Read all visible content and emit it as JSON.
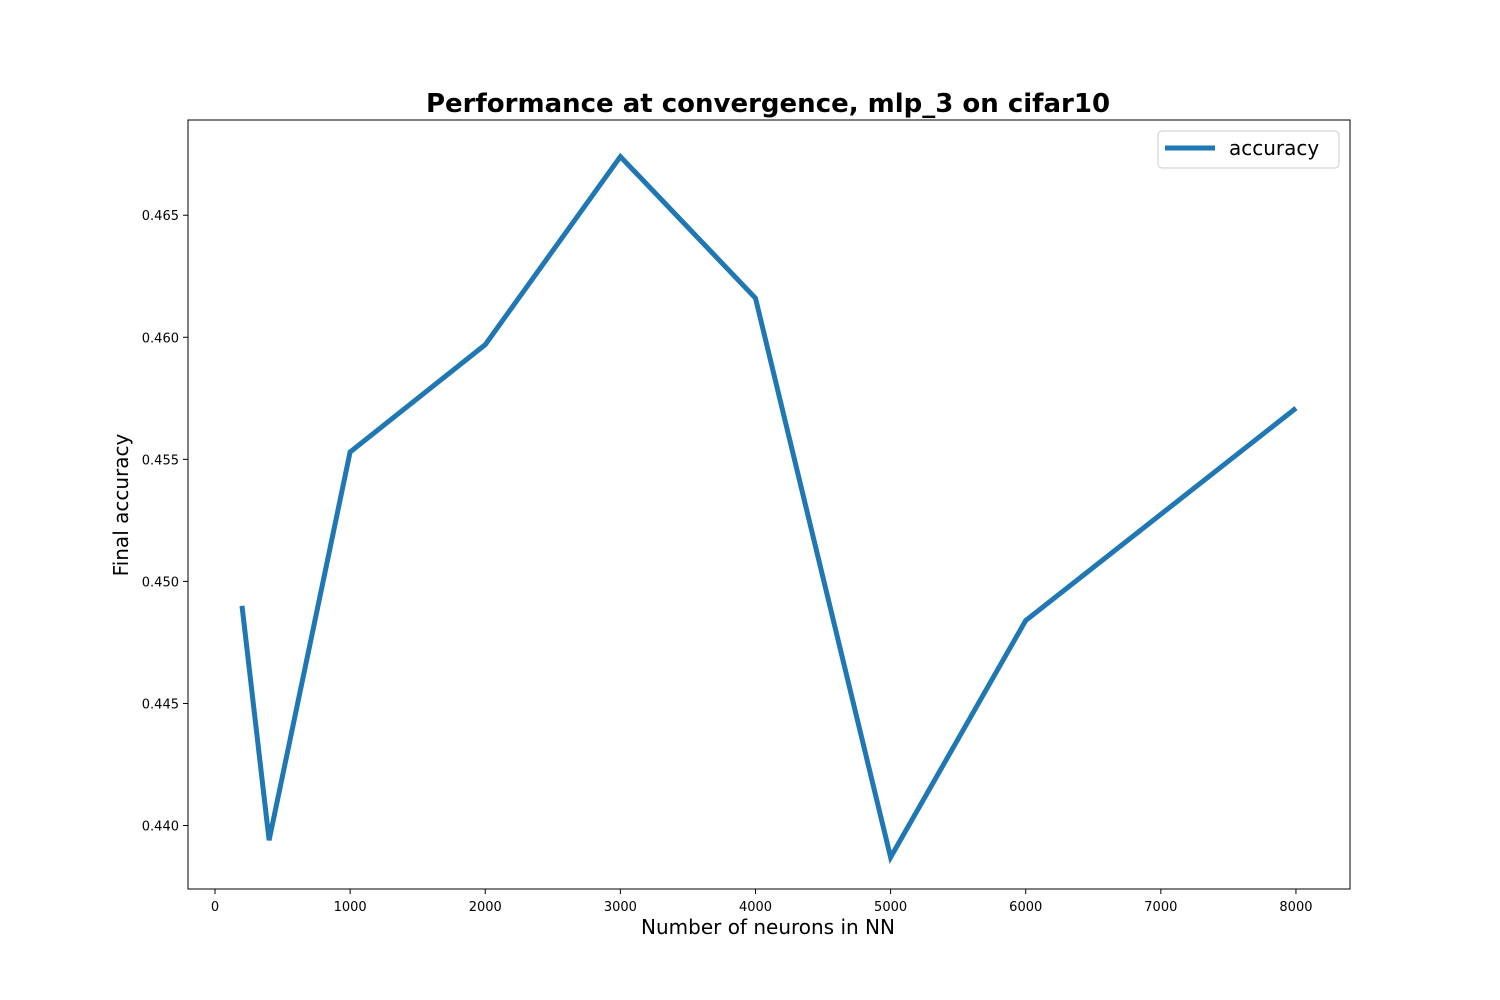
{
  "chart_data": {
    "type": "line",
    "title": "Performance at convergence, mlp_3 on cifar10",
    "xlabel": "Number of neurons in NN",
    "ylabel": "Final accuracy",
    "xlim": [
      -200,
      8400
    ],
    "ylim": [
      0.4374,
      0.4689
    ],
    "xticks": [
      0,
      1000,
      2000,
      3000,
      4000,
      5000,
      6000,
      7000,
      8000
    ],
    "xtick_labels": [
      "0",
      "1000",
      "2000",
      "3000",
      "4000",
      "5000",
      "6000",
      "7000",
      "8000"
    ],
    "yticks": [
      0.44,
      0.445,
      0.45,
      0.455,
      0.46,
      0.465
    ],
    "ytick_labels": [
      "0.440",
      "0.445",
      "0.450",
      "0.455",
      "0.460",
      "0.465"
    ],
    "grid": false,
    "legend_position": "top-right",
    "series": [
      {
        "name": "accuracy",
        "color": "#1f77b4",
        "x": [
          200,
          400,
          1000,
          2000,
          3000,
          4000,
          5000,
          6000,
          8000
        ],
        "y": [
          0.449,
          0.4394,
          0.4553,
          0.4597,
          0.4674,
          0.4616,
          0.4387,
          0.4484,
          0.4571
        ]
      }
    ]
  }
}
